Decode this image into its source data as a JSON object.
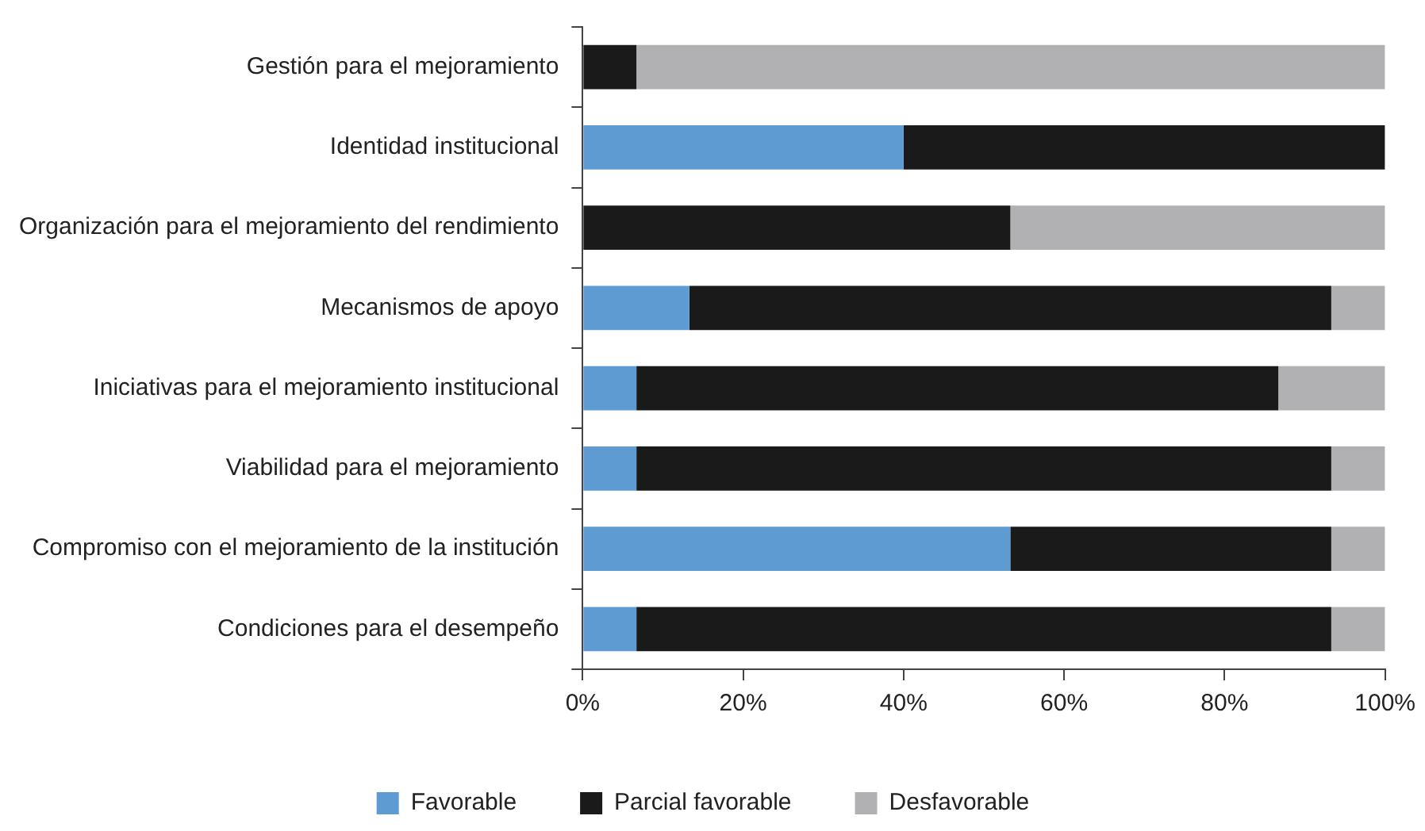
{
  "chart_data": {
    "type": "bar",
    "orientation": "horizontal",
    "stacked": true,
    "categories": [
      "Gestión para el mejoramiento",
      "Identidad institucional",
      "Organización para el mejoramiento del rendimiento",
      "Mecanismos de apoyo",
      "Iniciativas para el mejoramiento institucional",
      "Viabilidad para el mejoramiento",
      "Compromiso con el mejoramiento de la institución",
      "Condiciones para el desempeño"
    ],
    "series": [
      {
        "name": "Favorable",
        "color": "#5e9bd3",
        "values": [
          0,
          40,
          0,
          13.3,
          6.7,
          6.7,
          53.3,
          6.7
        ]
      },
      {
        "name": "Parcial favorable",
        "color": "#1a1a1a",
        "values": [
          6.7,
          60,
          53.3,
          80,
          80,
          86.6,
          40,
          86.6
        ]
      },
      {
        "name": "Desfavorable",
        "color": "#b1b1b4",
        "values": [
          93.3,
          0,
          46.7,
          6.7,
          13.3,
          6.7,
          6.7,
          6.7
        ]
      }
    ],
    "xlim": [
      0,
      100
    ],
    "xticks": [
      {
        "value": 0,
        "label": "0%"
      },
      {
        "value": 20,
        "label": "20%"
      },
      {
        "value": 40,
        "label": "40%"
      },
      {
        "value": 60,
        "label": "60%"
      },
      {
        "value": 80,
        "label": "80%"
      },
      {
        "value": 100,
        "label": "100%"
      }
    ],
    "grid": false,
    "legend": "bottom"
  }
}
